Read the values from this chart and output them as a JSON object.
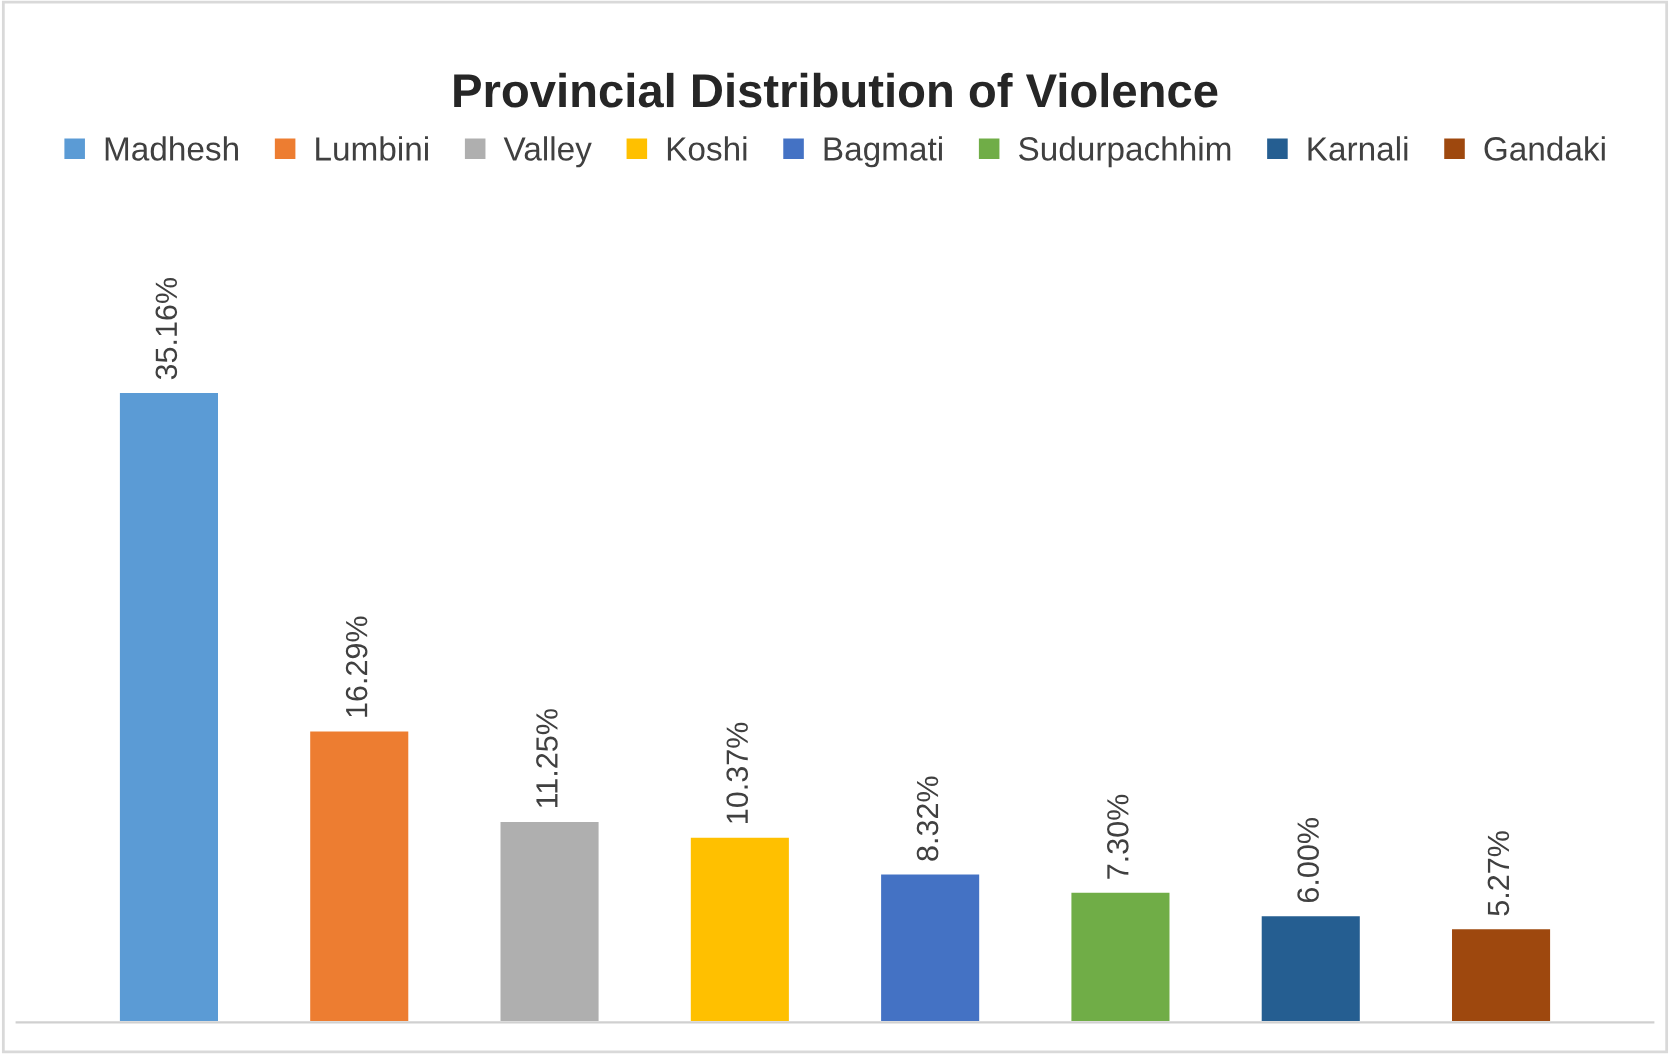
{
  "chart_data": {
    "type": "bar",
    "title": "Provincial Distribution of Violence",
    "categories": [
      null,
      null,
      null,
      null,
      null,
      null,
      null,
      null
    ],
    "stacked": true,
    "legend": "top",
    "series": [
      {
        "name": "Madhesh",
        "color": "#5b9bd5",
        "values": [
          35.16,
          null,
          null,
          null,
          null,
          null,
          null,
          null
        ],
        "value_labels": [
          "35.16%",
          null,
          null,
          null,
          null,
          null,
          null,
          null
        ]
      },
      {
        "name": "Lumbini",
        "color": "#ed7d31",
        "values": [
          null,
          16.29,
          null,
          null,
          null,
          null,
          null,
          null
        ],
        "value_labels": [
          null,
          "16.29%",
          null,
          null,
          null,
          null,
          null,
          null
        ]
      },
      {
        "name": "Valley",
        "color": "#afafaf",
        "values": [
          null,
          null,
          11.25,
          null,
          null,
          null,
          null,
          null
        ],
        "value_labels": [
          null,
          null,
          "11.25%",
          null,
          null,
          null,
          null,
          null
        ]
      },
      {
        "name": "Koshi",
        "color": "#ffc000",
        "values": [
          null,
          null,
          null,
          10.37,
          null,
          null,
          null,
          null
        ],
        "value_labels": [
          null,
          null,
          null,
          "10.37%",
          null,
          null,
          null,
          null
        ]
      },
      {
        "name": "Bagmati",
        "color": "#4472c4",
        "values": [
          null,
          null,
          null,
          null,
          8.32,
          null,
          null,
          null
        ],
        "value_labels": [
          null,
          null,
          null,
          null,
          "8.32%",
          null,
          null,
          null
        ]
      },
      {
        "name": "Sudurpachhim",
        "color": "#70ad47",
        "values": [
          null,
          null,
          null,
          null,
          null,
          7.3,
          null,
          null
        ],
        "value_labels": [
          null,
          null,
          null,
          null,
          null,
          "7.30%",
          null,
          null
        ]
      },
      {
        "name": "Karnali",
        "color": "#255e91",
        "values": [
          null,
          null,
          null,
          null,
          null,
          null,
          6.0,
          null
        ],
        "value_labels": [
          null,
          null,
          null,
          null,
          null,
          null,
          "6.00%",
          null
        ]
      },
      {
        "name": "Gandaki",
        "color": "#9e480e",
        "values": [
          null,
          null,
          null,
          null,
          null,
          null,
          null,
          5.27
        ],
        "value_labels": [
          null,
          null,
          null,
          null,
          null,
          null,
          null,
          "5.27%"
        ]
      }
    ]
  }
}
